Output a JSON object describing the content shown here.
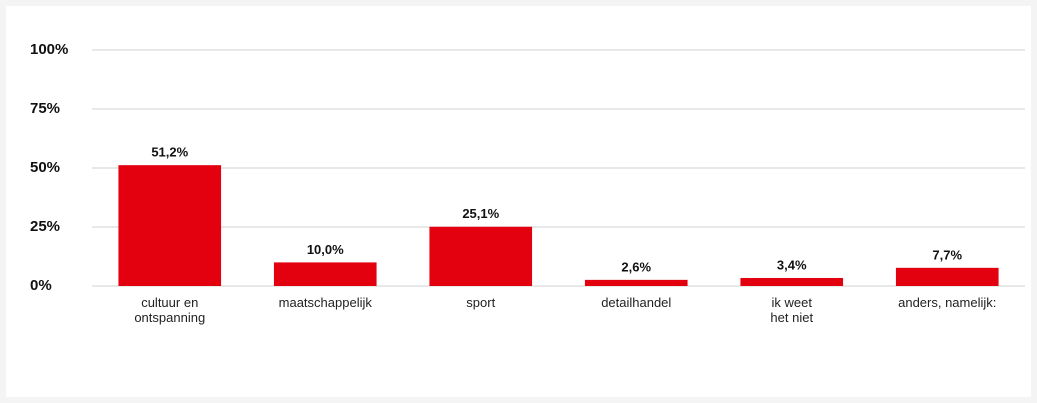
{
  "chart_data": {
    "type": "bar",
    "categories": [
      "cultuur en\nontspanning",
      "maatschappelijk",
      "sport",
      "detailhandel",
      "ik weet\nhet niet",
      "anders, namelijk:"
    ],
    "values": [
      51.2,
      10.0,
      25.1,
      2.6,
      3.4,
      7.7
    ],
    "value_labels": [
      "51,2%",
      "10,0%",
      "25,1%",
      "2,6%",
      "3,4%",
      "7,7%"
    ],
    "color": "#e3000f",
    "ylim": [
      0,
      100
    ],
    "yticks": [
      {
        "value": 0,
        "label": "0%"
      },
      {
        "value": 25,
        "label": "25%"
      },
      {
        "value": 50,
        "label": "50%"
      },
      {
        "value": 75,
        "label": "75%"
      },
      {
        "value": 100,
        "label": "100%"
      }
    ],
    "grid": true
  }
}
